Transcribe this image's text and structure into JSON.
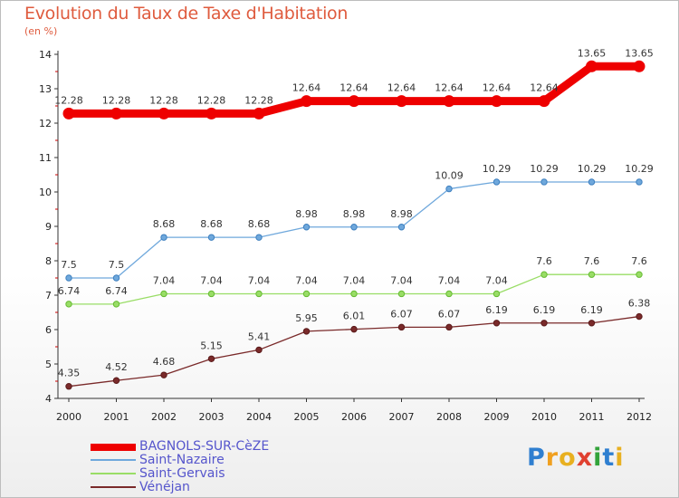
{
  "title": "Evolution du Taux de Taxe d'Habitation",
  "subtitle": "(en %)",
  "logo": {
    "text": "Proxiti",
    "letters": [
      {
        "ch": "P",
        "color": "#2f7fd0"
      },
      {
        "ch": "r",
        "color": "#f0a020"
      },
      {
        "ch": "o",
        "color": "#e8b020"
      },
      {
        "ch": "x",
        "color": "#e04030"
      },
      {
        "ch": "i",
        "color": "#33a33a"
      },
      {
        "ch": "t",
        "color": "#2f7fd0"
      },
      {
        "ch": "i",
        "color": "#e8b020"
      }
    ]
  },
  "chart_data": {
    "type": "line",
    "title": "Evolution du Taux de Taxe d'Habitation",
    "subtitle": "(en %)",
    "xlabel": "",
    "ylabel": "",
    "x": [
      "2000",
      "2001",
      "2002",
      "2003",
      "2004",
      "2005",
      "2006",
      "2007",
      "2008",
      "2009",
      "2010",
      "2011",
      "2012"
    ],
    "ylim": [
      4,
      14
    ],
    "yticks": [
      "4",
      "5",
      "6",
      "7",
      "8",
      "9",
      "10",
      "11",
      "12",
      "13",
      "14"
    ],
    "grid": false,
    "legend_position": "bottom-left",
    "series": [
      {
        "name": "BAGNOLS-SUR-CèZE",
        "color": "#ee0000",
        "values": [
          12.28,
          12.28,
          12.28,
          12.28,
          12.28,
          12.64,
          12.64,
          12.64,
          12.64,
          12.64,
          12.64,
          13.65,
          13.65
        ],
        "labels": [
          "12.28",
          "12.28",
          "12.28",
          "12.28",
          "12.28",
          "12.64",
          "12.64",
          "12.64",
          "12.64",
          "12.64",
          "12.64",
          "13.65",
          "13.65"
        ]
      },
      {
        "name": "Saint-Nazaire",
        "color": "#6fa8dc",
        "values": [
          7.5,
          7.5,
          8.68,
          8.68,
          8.68,
          8.98,
          8.98,
          8.98,
          10.09,
          10.29,
          10.29,
          10.29,
          10.29
        ],
        "labels": [
          "7.5",
          "7.5",
          "8.68",
          "8.68",
          "8.68",
          "8.98",
          "8.98",
          "8.98",
          "10.09",
          "10.29",
          "10.29",
          "10.29",
          "10.29"
        ]
      },
      {
        "name": "Saint-Gervais",
        "color": "#99dd66",
        "values": [
          6.74,
          6.74,
          7.04,
          7.04,
          7.04,
          7.04,
          7.04,
          7.04,
          7.04,
          7.04,
          7.6,
          7.6,
          7.6
        ],
        "labels": [
          "6.74",
          "6.74",
          "7.04",
          "7.04",
          "7.04",
          "7.04",
          "7.04",
          "7.04",
          "7.04",
          "7.04",
          "7.6",
          "7.6",
          "7.6"
        ]
      },
      {
        "name": "Vénéjan",
        "color": "#7a2a2a",
        "values": [
          4.35,
          4.52,
          4.68,
          5.15,
          5.41,
          5.95,
          6.01,
          6.07,
          6.07,
          6.19,
          6.19,
          6.19,
          6.38
        ],
        "labels": [
          "4.35",
          "4.52",
          "4.68",
          "5.15",
          "5.41",
          "5.95",
          "6.01",
          "6.07",
          "6.07",
          "6.19",
          "6.19",
          "6.19",
          "6.38"
        ]
      }
    ]
  }
}
